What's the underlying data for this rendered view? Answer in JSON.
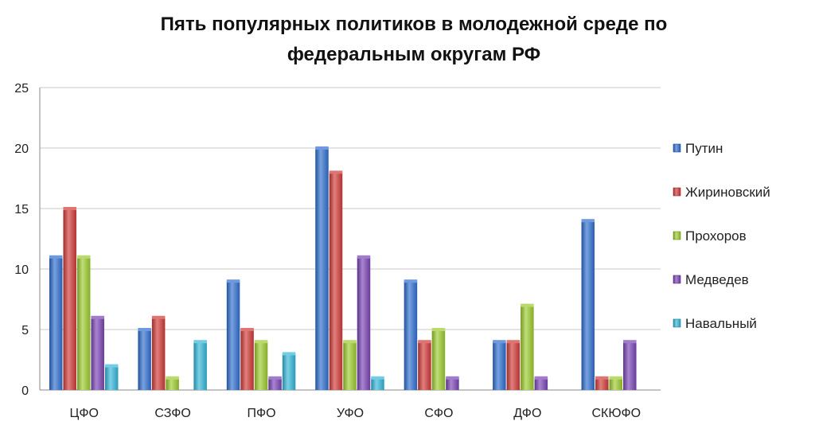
{
  "chart_data": {
    "type": "bar",
    "title": "Пять популярных политиков в молодежной среде  по федеральным округам РФ",
    "title_lines": [
      "Пять популярных политиков в молодежной среде  по",
      "федеральным округам РФ"
    ],
    "categories": [
      "ЦФО",
      "СЗФО",
      "ПФО",
      "УФО",
      "СФО",
      "ДФО",
      "СКЮФО"
    ],
    "series": [
      {
        "name": "Путин",
        "color": "#2f6fd0",
        "values": [
          11,
          5,
          9,
          20,
          9,
          4,
          14
        ]
      },
      {
        "name": "Жириновский",
        "color": "#d13a37",
        "values": [
          15,
          6,
          5,
          18,
          4,
          4,
          1
        ]
      },
      {
        "name": "Прохоров",
        "color": "#9ccc2d",
        "values": [
          11,
          1,
          4,
          4,
          5,
          7,
          1
        ]
      },
      {
        "name": "Медведев",
        "color": "#7a44b6",
        "values": [
          6,
          0,
          1,
          11,
          1,
          1,
          4
        ]
      },
      {
        "name": "Навальный",
        "color": "#34b6d9",
        "values": [
          2,
          4,
          3,
          1,
          0,
          0,
          0
        ]
      }
    ],
    "xlabel": "",
    "ylabel": "",
    "ylim": [
      0,
      25
    ],
    "yticks": [
      "0",
      "5",
      "10",
      "15",
      "20",
      "25"
    ],
    "grid": true,
    "legend_position": "right"
  }
}
